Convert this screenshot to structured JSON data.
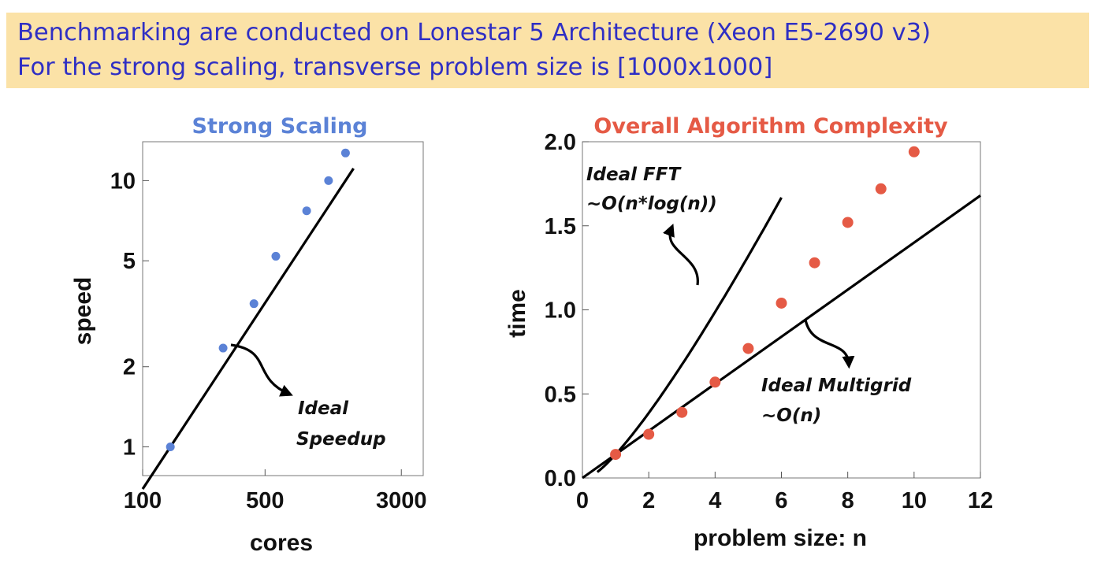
{
  "banner": {
    "line1": "Benchmarking are conducted on Lonestar 5 Architecture (Xeon E5-2690 v3)",
    "line2": "For the strong scaling, transverse problem size is [1000x1000]",
    "background": "#fbe2a7",
    "text_color": "#2f2fc4"
  },
  "chart_data": [
    {
      "type": "scatter",
      "title": "Strong Scaling",
      "title_color": "#5b82d6",
      "xlabel": "cores",
      "ylabel": "speed",
      "xscale": "log",
      "yscale": "log",
      "xlim": [
        100,
        4000
      ],
      "ylim": [
        0.78,
        14
      ],
      "xticks": [
        100,
        500,
        3000
      ],
      "yticks": [
        1,
        2,
        5,
        10
      ],
      "point_color": "#5b82d6",
      "series": [
        {
          "x": [
            144,
            288,
            432,
            576,
            864,
            1152,
            1440
          ],
          "y": [
            1.0,
            2.35,
            3.45,
            5.2,
            7.7,
            10.0,
            12.7
          ]
        }
      ],
      "ideal_line": {
        "label": [
          "Ideal",
          "Speedup"
        ]
      },
      "grid": false
    },
    {
      "type": "scatter",
      "title": "Overall Algorithm Complexity",
      "title_color": "#e55a45",
      "xlabel": "problem size: n",
      "ylabel": "time",
      "xlim": [
        0,
        12
      ],
      "ylim": [
        0,
        2.0
      ],
      "xticks": [
        0,
        2,
        4,
        6,
        8,
        10,
        12
      ],
      "yticks": [
        "0.0",
        "0.5",
        "1.0",
        "1.5",
        "2.0"
      ],
      "point_color": "#e55a45",
      "series": [
        {
          "x": [
            1,
            2,
            3,
            4,
            5,
            6,
            7,
            8,
            9,
            10
          ],
          "y": [
            0.14,
            0.26,
            0.39,
            0.57,
            0.77,
            1.04,
            1.28,
            1.52,
            1.72,
            1.94
          ]
        }
      ],
      "ideal_fft_label": [
        "Ideal FFT",
        "~O(n*log(n))"
      ],
      "ideal_multigrid_label": [
        "Ideal Multigrid",
        "~O(n)"
      ],
      "grid": false
    }
  ]
}
